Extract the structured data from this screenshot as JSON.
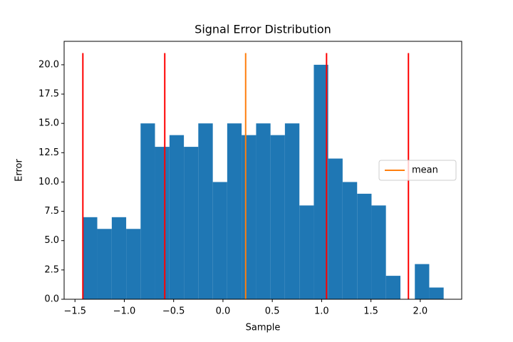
{
  "chart_data": {
    "type": "histogram",
    "title": "Signal Error Distribution",
    "x_label": "Sample",
    "y_label": "Error",
    "bins": [
      -1.42,
      -1.274,
      -1.127,
      -0.981,
      -0.835,
      -0.689,
      -0.542,
      -0.396,
      -0.25,
      -0.103,
      0.043,
      0.189,
      0.336,
      0.482,
      0.628,
      0.775,
      0.921,
      1.067,
      1.213,
      1.36,
      1.506,
      1.652,
      1.799,
      1.945,
      2.091,
      2.237
    ],
    "counts": [
      7,
      6,
      7,
      6,
      15,
      13,
      14,
      13,
      15,
      10,
      15,
      14,
      15,
      14,
      15,
      8,
      20,
      12,
      10,
      9,
      8,
      2,
      0,
      3,
      1
    ],
    "color": "#1f77b4",
    "vlines": [
      {
        "x": [
          -1.42,
          -0.59,
          1.05,
          1.88
        ],
        "color": "#ff0000"
      },
      {
        "name": "mean",
        "x": [
          0.23
        ],
        "color": "#ff7f0e"
      }
    ],
    "vline_range": [
      0,
      21
    ],
    "xlim": [
      -1.61,
      2.42
    ],
    "xticks": [
      {
        "value": -1.5,
        "label": "−1.5"
      },
      {
        "value": -1.0,
        "label": "−1.0"
      },
      {
        "value": -0.5,
        "label": "−0.5"
      },
      {
        "value": 0,
        "label": "0.0"
      },
      0.5,
      {
        "value": 1,
        "label": "1.0"
      },
      1.5,
      {
        "value": 2,
        "label": "2.0"
      }
    ],
    "ylim": [
      0,
      22
    ],
    "yticks": [
      {
        "value": 0,
        "label": "0.0"
      },
      2.5,
      {
        "value": 5,
        "label": "5.0"
      },
      7.5,
      {
        "value": 10,
        "label": "10.0"
      },
      12.5,
      {
        "value": 15,
        "label": "15.0"
      },
      17.5,
      {
        "value": 20,
        "label": "20.0"
      }
    ],
    "legend": "center right"
  }
}
